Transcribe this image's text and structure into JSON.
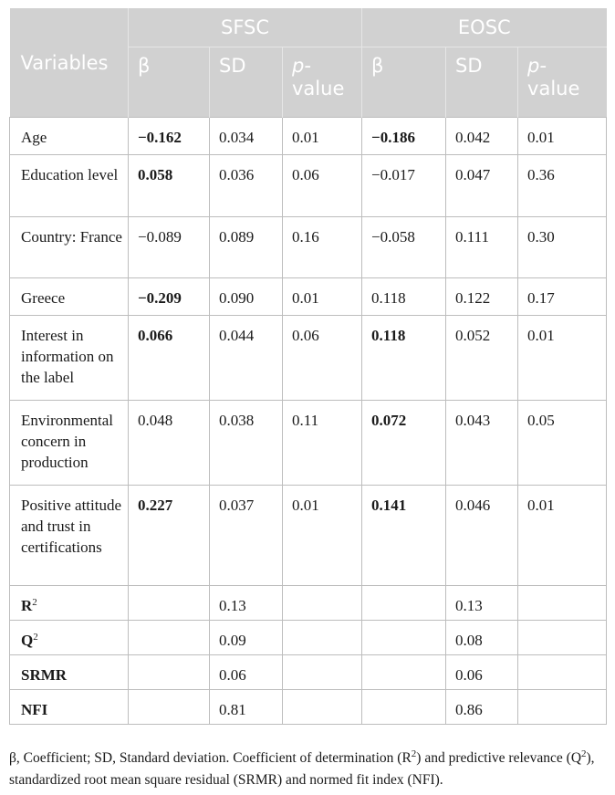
{
  "header": {
    "variables": "Variables",
    "groups": [
      "SFSC",
      "EOSC"
    ],
    "sub": [
      "β",
      "SD",
      "p-",
      "value"
    ]
  },
  "rows": [
    {
      "label": "Age",
      "cells": [
        {
          "v": "−0.162",
          "b": true
        },
        {
          "v": "0.034"
        },
        {
          "v": "0.01"
        },
        {
          "v": "−0.186",
          "b": true
        },
        {
          "v": "0.042"
        },
        {
          "v": "0.01"
        }
      ]
    },
    {
      "label": "Education level",
      "cells": [
        {
          "v": "0.058",
          "b": true
        },
        {
          "v": "0.036"
        },
        {
          "v": "0.06"
        },
        {
          "v": "−0.017"
        },
        {
          "v": "0.047"
        },
        {
          "v": "0.36"
        }
      ]
    },
    {
      "label": "Country: France",
      "cells": [
        {
          "v": "−0.089"
        },
        {
          "v": "0.089"
        },
        {
          "v": "0.16"
        },
        {
          "v": "−0.058"
        },
        {
          "v": "0.111"
        },
        {
          "v": "0.30"
        }
      ]
    },
    {
      "label": "Greece",
      "cells": [
        {
          "v": "−0.209",
          "b": true
        },
        {
          "v": "0.090"
        },
        {
          "v": "0.01"
        },
        {
          "v": "0.118"
        },
        {
          "v": "0.122"
        },
        {
          "v": "0.17"
        }
      ]
    },
    {
      "label": "Interest in information on the label",
      "cells": [
        {
          "v": "0.066",
          "b": true
        },
        {
          "v": "0.044"
        },
        {
          "v": "0.06"
        },
        {
          "v": "0.118",
          "b": true
        },
        {
          "v": "0.052"
        },
        {
          "v": "0.01"
        }
      ]
    },
    {
      "label": "Environmental concern in production",
      "cells": [
        {
          "v": "0.048"
        },
        {
          "v": "0.038"
        },
        {
          "v": "0.11"
        },
        {
          "v": "0.072",
          "b": true
        },
        {
          "v": "0.043"
        },
        {
          "v": "0.05"
        }
      ]
    },
    {
      "label": "Positive attitude and trust in certifications",
      "cells": [
        {
          "v": "0.227",
          "b": true
        },
        {
          "v": "0.037"
        },
        {
          "v": "0.01"
        },
        {
          "v": "0.141",
          "b": true
        },
        {
          "v": "0.046"
        },
        {
          "v": "0.01"
        }
      ]
    }
  ],
  "fit_rows": [
    {
      "label": "R",
      "sup": "2",
      "sfsc": "0.13",
      "eosc": "0.13"
    },
    {
      "label": "Q",
      "sup": "2",
      "sfsc": "0.09",
      "eosc": "0.08"
    },
    {
      "label": "SRMR",
      "sup": "",
      "sfsc": "0.06",
      "eosc": "0.06"
    },
    {
      "label": "NFI",
      "sup": "",
      "sfsc": "0.81",
      "eosc": "0.86"
    }
  ],
  "note": {
    "t1": "β, Coefficient; SD, Standard deviation. Coefficient of determination (R",
    "s1": "2",
    "t2": ") and predictive relevance (Q",
    "s2": "2",
    "t3": "), standardized root mean square residual (SRMR) and normed fit index (NFI)."
  }
}
